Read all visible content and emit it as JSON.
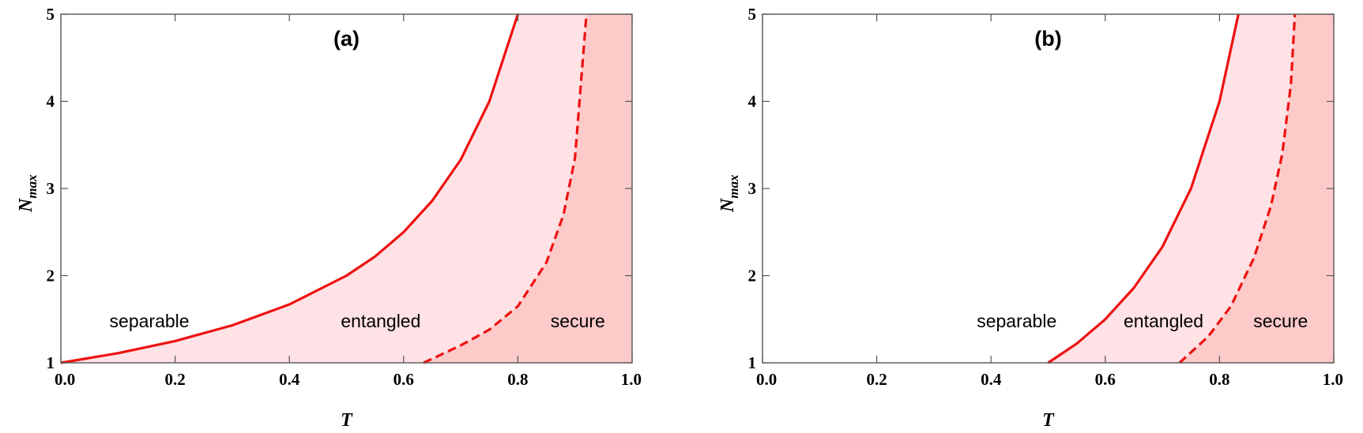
{
  "chart_data": [
    {
      "type": "line",
      "panel_label": "(a)",
      "xlabel": "T",
      "ylabel": "N",
      "ylabel_sub": "max",
      "xlim": [
        0.0,
        1.0
      ],
      "ylim": [
        1,
        5
      ],
      "x_ticks": [
        "0.0",
        "0.2",
        "0.4",
        "0.6",
        "0.8",
        "1.0"
      ],
      "y_ticks": [
        "1",
        "2",
        "3",
        "4",
        "5"
      ],
      "grid": false,
      "series": [
        {
          "style": "solid",
          "color": "#ee1111",
          "x": [
            0.0,
            0.1,
            0.2,
            0.3,
            0.4,
            0.5,
            0.55,
            0.6,
            0.65,
            0.7,
            0.75,
            0.8
          ],
          "y": [
            1.0,
            1.11,
            1.25,
            1.43,
            1.67,
            2.0,
            2.22,
            2.5,
            2.86,
            3.33,
            4.0,
            5.0
          ]
        },
        {
          "style": "dashed",
          "color": "#ee1111",
          "x": [
            0.635,
            0.7,
            0.75,
            0.8,
            0.85,
            0.88,
            0.9,
            0.92
          ],
          "y": [
            1.0,
            1.2,
            1.38,
            1.65,
            2.15,
            2.7,
            3.35,
            5.0
          ]
        }
      ],
      "regions": [
        {
          "label": "separable",
          "color": "#ffffff",
          "label_pos": [
            0.155,
            1.48
          ]
        },
        {
          "label": "entangled",
          "color": "#ffe2e5",
          "label_pos": [
            0.56,
            1.48
          ]
        },
        {
          "label": "secure",
          "color": "#fdcaca",
          "label_pos": [
            0.905,
            1.48
          ]
        }
      ]
    },
    {
      "type": "line",
      "panel_label": "(b)",
      "xlabel": "T",
      "ylabel": "N",
      "ylabel_sub": "max",
      "xlim": [
        0.0,
        1.0
      ],
      "ylim": [
        1,
        5
      ],
      "x_ticks": [
        "0.0",
        "0.2",
        "0.4",
        "0.6",
        "0.8",
        "1.0"
      ],
      "y_ticks": [
        "1",
        "2",
        "3",
        "4",
        "5"
      ],
      "grid": false,
      "series": [
        {
          "style": "solid",
          "color": "#ee1111",
          "x": [
            0.5,
            0.55,
            0.6,
            0.65,
            0.7,
            0.75,
            0.8,
            0.833
          ],
          "y": [
            1.0,
            1.22,
            1.5,
            1.86,
            2.33,
            3.0,
            4.0,
            5.0
          ]
        },
        {
          "style": "dashed",
          "color": "#ee1111",
          "x": [
            0.73,
            0.78,
            0.82,
            0.86,
            0.89,
            0.91,
            0.925,
            0.932
          ],
          "y": [
            1.0,
            1.3,
            1.65,
            2.2,
            2.8,
            3.4,
            4.2,
            5.0
          ]
        }
      ],
      "regions": [
        {
          "label": "separable",
          "color": "#ffffff",
          "label_pos": [
            0.445,
            1.48
          ]
        },
        {
          "label": "entangled",
          "color": "#ffe2e5",
          "label_pos": [
            0.702,
            1.48
          ]
        },
        {
          "label": "secure",
          "color": "#fdcaca",
          "label_pos": [
            0.907,
            1.48
          ]
        }
      ]
    }
  ]
}
